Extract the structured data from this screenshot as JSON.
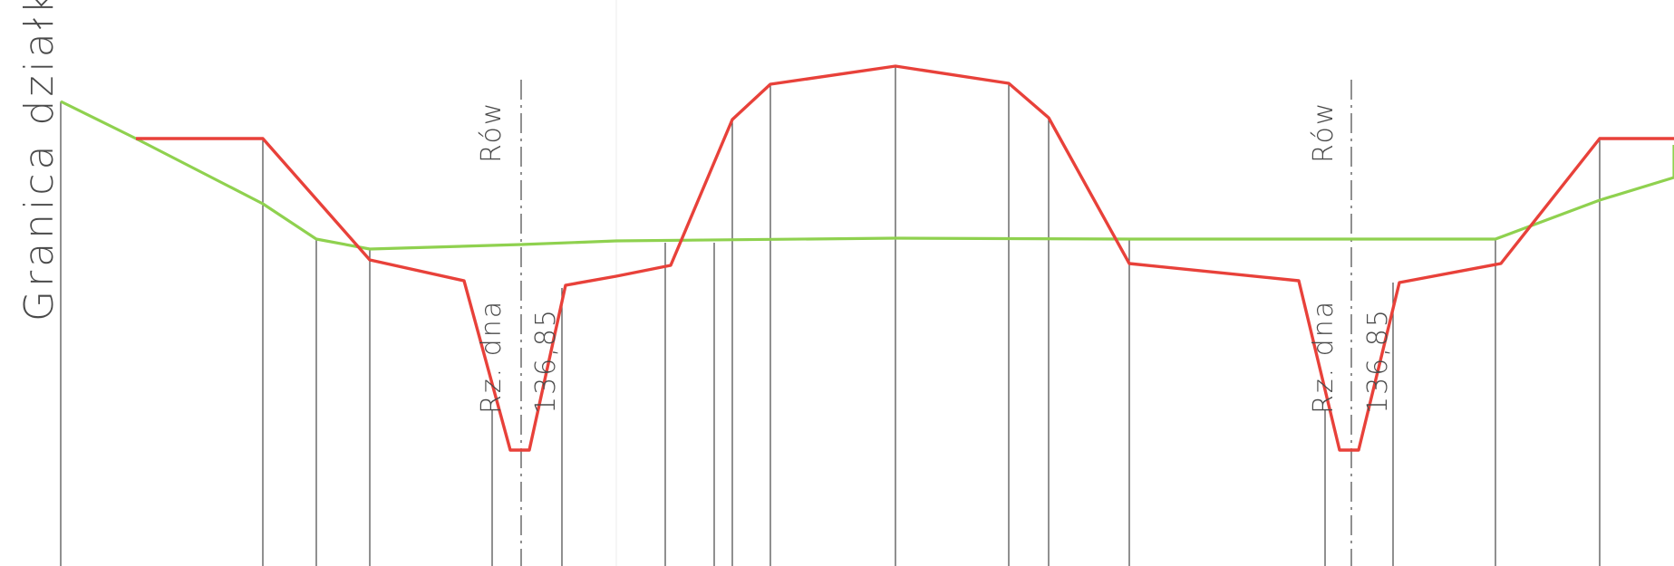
{
  "labels": {
    "boundary": "Granica działki",
    "ditch_left": "Rów",
    "ditch_right": "Rów",
    "bottom_level_left": "Rz. dna",
    "bottom_value_left": "136,85",
    "bottom_level_right": "Rz. dna",
    "bottom_value_right": "136,85"
  },
  "colors": {
    "design_profile": "#e8413a",
    "terrain_profile": "#8fd14f",
    "construction_lines": "#555555",
    "text": "#4a4a4a"
  }
}
